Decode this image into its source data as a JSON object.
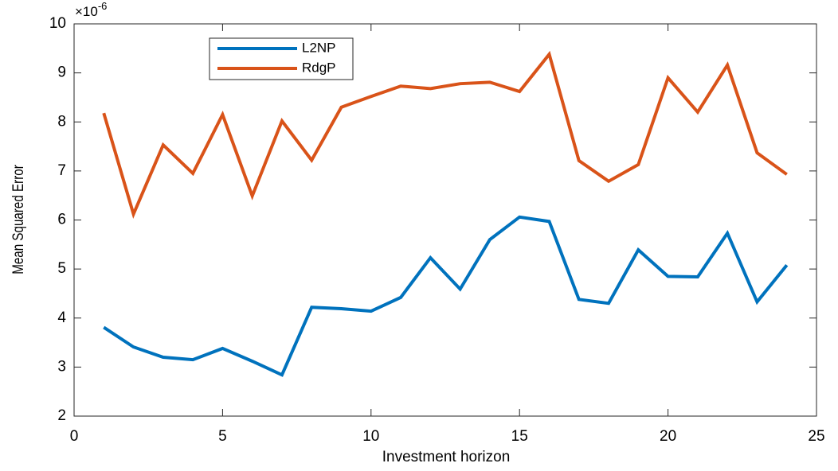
{
  "chart_data": {
    "type": "line",
    "x_label": "Investment horizon",
    "y_label": "Mean Squared Error",
    "y_multiplier": {
      "base": "×10",
      "exponent": "-6"
    },
    "x": [
      1,
      2,
      3,
      4,
      5,
      6,
      7,
      8,
      9,
      10,
      11,
      12,
      13,
      14,
      15,
      16,
      17,
      18,
      19,
      20,
      21,
      22,
      23,
      24
    ],
    "series": [
      {
        "name": "L2NP",
        "color": "#0072BD",
        "values": [
          3.81,
          3.41,
          3.2,
          3.15,
          3.38,
          3.12,
          2.84,
          4.22,
          4.19,
          4.14,
          4.42,
          5.23,
          4.59,
          5.6,
          6.06,
          5.97,
          4.38,
          4.3,
          5.39,
          4.85,
          4.84,
          5.73,
          4.33,
          5.08
        ]
      },
      {
        "name": "RdgP",
        "color": "#D95319",
        "values": [
          8.18,
          6.12,
          7.53,
          6.95,
          8.15,
          6.49,
          8.02,
          7.22,
          8.3,
          8.52,
          8.73,
          8.68,
          8.78,
          8.81,
          8.62,
          9.38,
          7.21,
          6.79,
          7.13,
          8.9,
          8.2,
          9.16,
          7.37,
          6.93
        ]
      }
    ],
    "xlim": [
      0,
      25
    ],
    "xticks": [
      0,
      5,
      10,
      15,
      20,
      25
    ],
    "ylim": [
      2,
      10
    ],
    "yticks": [
      2,
      3,
      4,
      5,
      6,
      7,
      8,
      9,
      10
    ],
    "grid": false,
    "legend": "upper left"
  }
}
